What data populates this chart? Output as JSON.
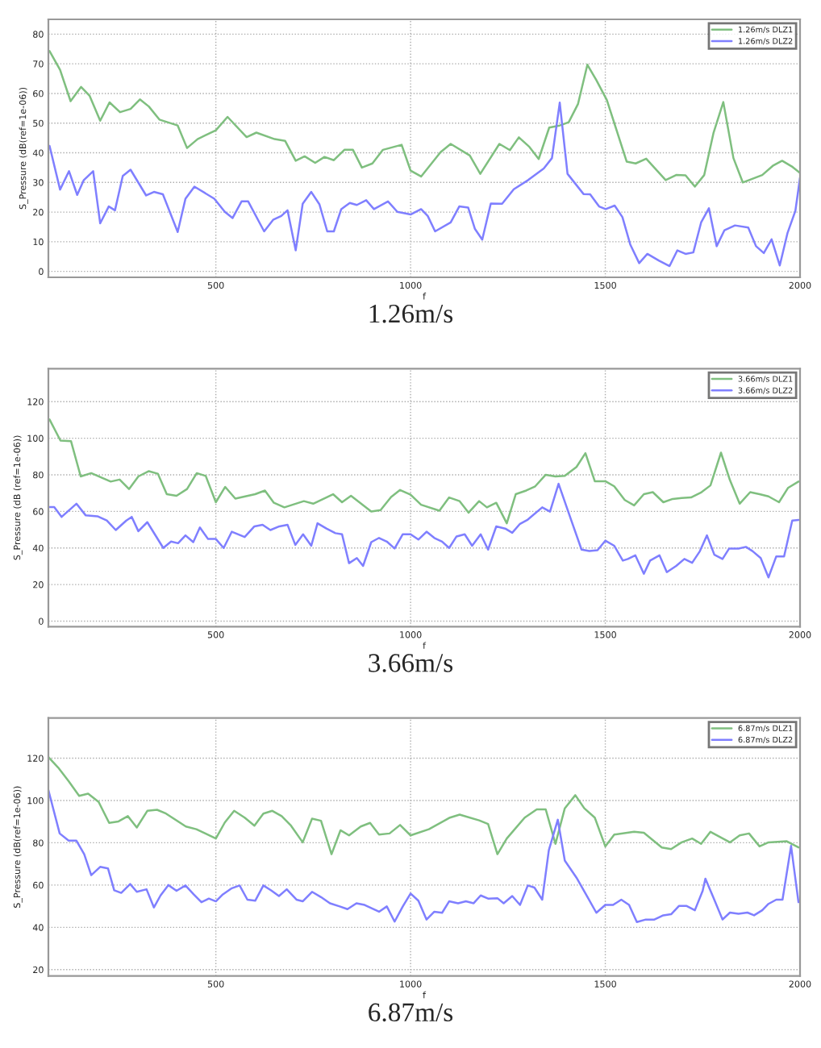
{
  "chart_data": [
    {
      "type": "line",
      "xlabel": "f",
      "ylabel": "S_Pressure (dB(ref=1e-06))",
      "annotations": [
        "1.26m/s"
      ],
      "xlim": [
        70,
        2000
      ],
      "xticks": [
        500,
        1000,
        1500,
        2000
      ],
      "ylim": [
        -2,
        85
      ],
      "yticks": [
        0,
        10,
        20,
        30,
        40,
        50,
        60,
        70,
        80
      ],
      "grid": true,
      "legend": "top right",
      "line_style": "solid",
      "series": [
        {
          "name": "1.26m/s DLZ1",
          "color": "#7fbf7f",
          "x": [
            73,
            100,
            127,
            154,
            176,
            203,
            227,
            254,
            281,
            305,
            328,
            355,
            402,
            426,
            453,
            500,
            530,
            579,
            604,
            651,
            678,
            705,
            728,
            755,
            779,
            803,
            830,
            852,
            875,
            902,
            929,
            977,
            1000,
            1027,
            1077,
            1103,
            1152,
            1179,
            1228,
            1255,
            1278,
            1305,
            1329,
            1356,
            1383,
            1406,
            1430,
            1454,
            1477,
            1504,
            1555,
            1578,
            1605,
            1655,
            1682,
            1706,
            1730,
            1754,
            1778,
            1803,
            1829,
            1853,
            1903,
            1930,
            1954,
            1981,
            2000
          ],
          "values": [
            74.3,
            68,
            57.4,
            62.2,
            59.2,
            50.8,
            57,
            53.7,
            54.8,
            58,
            55.6,
            51.2,
            49.2,
            41.6,
            44.6,
            47.6,
            52.1,
            45.3,
            46.8,
            44.6,
            44,
            37.3,
            38.8,
            36.6,
            38.6,
            37.5,
            41,
            41,
            35,
            36.4,
            41,
            42.7,
            34,
            32,
            40.2,
            43,
            39.1,
            32.9,
            43,
            40.9,
            45.2,
            42,
            37.9,
            48.5,
            49.2,
            50.3,
            56.5,
            69.7,
            64.5,
            57.8,
            37,
            36.4,
            38,
            30.8,
            32.5,
            32.4,
            28.6,
            32.5,
            46.8,
            57.1,
            38.2,
            30,
            32.5,
            35.6,
            37.3,
            35.2,
            33.2
          ]
        },
        {
          "name": "1.26m/s DLZ2",
          "color": "#7f7fff",
          "x": [
            73,
            100,
            123,
            144,
            161,
            185,
            203,
            225,
            241,
            261,
            281,
            321,
            341,
            364,
            402,
            422,
            445,
            496,
            523,
            543,
            566,
            583,
            624,
            647,
            668,
            684,
            705,
            723,
            745,
            766,
            786,
            803,
            822,
            844,
            862,
            886,
            906,
            942,
            966,
            1000,
            1027,
            1044,
            1063,
            1103,
            1125,
            1148,
            1165,
            1184,
            1206,
            1235,
            1265,
            1302,
            1342,
            1363,
            1383,
            1403,
            1444,
            1461,
            1484,
            1501,
            1524,
            1544,
            1564,
            1587,
            1608,
            1638,
            1665,
            1685,
            1706,
            1726,
            1746,
            1766,
            1786,
            1806,
            1833,
            1867,
            1887,
            1907,
            1927,
            1948,
            1968,
            1988,
            2000
          ],
          "values": [
            42.3,
            27.6,
            33.8,
            25.8,
            30.8,
            33.8,
            16.2,
            21.9,
            20.6,
            32.2,
            34.3,
            25.6,
            26.8,
            26,
            13.3,
            24.5,
            28.6,
            24.5,
            20.1,
            18,
            23.6,
            23.6,
            13.5,
            17.4,
            18.7,
            20.6,
            7.1,
            22.8,
            26.8,
            22.6,
            13.5,
            13.5,
            21,
            23.1,
            22.4,
            24,
            21,
            23.6,
            20.1,
            19.2,
            21,
            18.7,
            13.5,
            16.5,
            21.9,
            21.5,
            14.4,
            10.7,
            22.9,
            22.8,
            27.7,
            30.8,
            34.7,
            38.2,
            56.9,
            32.9,
            26.1,
            26,
            21.9,
            21,
            22.2,
            18.3,
            9.1,
            2.8,
            5.9,
            3.6,
            1.8,
            7.1,
            5.9,
            6.4,
            16.5,
            21.3,
            8.5,
            13.9,
            15.5,
            14.8,
            8.5,
            6.2,
            10.8,
            2,
            13,
            20.4,
            31.6
          ]
        }
      ]
    },
    {
      "type": "line",
      "xlabel": "f",
      "ylabel": "S_Pressure (dB (ref=1e-06))",
      "annotations": [
        "3.66m/s"
      ],
      "xlim": [
        70,
        2000
      ],
      "xticks": [
        500,
        1000,
        1500,
        2000
      ],
      "ylim": [
        -3,
        138
      ],
      "yticks": [
        0,
        20,
        40,
        60,
        80,
        100,
        120
      ],
      "grid": true,
      "legend": "top right",
      "line_style": "solid",
      "series": [
        {
          "name": "3.66m/s DLZ1",
          "color": "#7fbf7f",
          "x": [
            73,
            101,
            128,
            153,
            180,
            230,
            253,
            277,
            301,
            328,
            351,
            374,
            399,
            426,
            451,
            474,
            500,
            524,
            550,
            601,
            626,
            649,
            676,
            726,
            750,
            801,
            824,
            847,
            899,
            923,
            950,
            973,
            1000,
            1027,
            1074,
            1099,
            1126,
            1149,
            1176,
            1196,
            1220,
            1247,
            1270,
            1297,
            1320,
            1347,
            1372,
            1396,
            1426,
            1449,
            1473,
            1500,
            1523,
            1550,
            1574,
            1599,
            1622,
            1649,
            1673,
            1696,
            1720,
            1747,
            1770,
            1797,
            1820,
            1845,
            1872,
            1896,
            1919,
            1946,
            1969,
            1996
          ],
          "values": [
            110.2,
            98.7,
            98.4,
            79.1,
            80.9,
            76.3,
            77.4,
            72.2,
            79.1,
            82,
            80.6,
            69.4,
            68.5,
            72.2,
            80.9,
            79.4,
            65,
            73.4,
            67,
            69.4,
            71.4,
            64.7,
            62.2,
            65.6,
            64.2,
            69.4,
            65,
            68.5,
            59.9,
            60.7,
            67.9,
            71.7,
            69.1,
            63.6,
            60.4,
            67.6,
            65.6,
            59.3,
            65.6,
            62.2,
            64.7,
            53.5,
            69.4,
            71.4,
            73.7,
            80,
            79.1,
            79.4,
            84.3,
            91.8,
            76.5,
            76.5,
            73.7,
            66.2,
            63.3,
            69.4,
            70.5,
            65,
            66.8,
            67.3,
            67.6,
            70.5,
            74.2,
            92.1,
            77.1,
            64.2,
            70.5,
            69.4,
            68.2,
            65,
            72.8,
            76.3
          ]
        },
        {
          "name": "3.66m/s DLZ2",
          "color": "#7f7fff",
          "x": [
            73,
            85,
            104,
            142,
            166,
            196,
            220,
            243,
            270,
            284,
            301,
            324,
            365,
            385,
            403,
            422,
            442,
            459,
            480,
            500,
            520,
            541,
            574,
            599,
            620,
            640,
            663,
            684,
            704,
            724,
            745,
            761,
            784,
            807,
            824,
            842,
            862,
            878,
            899,
            919,
            939,
            959,
            980,
            1000,
            1020,
            1041,
            1061,
            1081,
            1099,
            1118,
            1139,
            1158,
            1180,
            1199,
            1220,
            1243,
            1261,
            1281,
            1301,
            1338,
            1358,
            1380,
            1412,
            1439,
            1459,
            1480,
            1500,
            1523,
            1545,
            1558,
            1577,
            1599,
            1615,
            1639,
            1658,
            1682,
            1703,
            1723,
            1743,
            1761,
            1780,
            1801,
            1818,
            1842,
            1861,
            1878,
            1899,
            1919,
            1939,
            1959,
            1980,
            1996
          ],
          "values": [
            62.4,
            62.4,
            57,
            64.2,
            57.8,
            57.3,
            55,
            49.8,
            55,
            57,
            49.2,
            54.1,
            40,
            43.5,
            42.6,
            46.9,
            43.2,
            51.2,
            44.9,
            44.9,
            40,
            48.9,
            46,
            51.8,
            52.7,
            49.8,
            51.8,
            52.7,
            41.7,
            47.5,
            41.2,
            53.5,
            50.6,
            48.1,
            47.5,
            31.7,
            34.5,
            30.2,
            43.2,
            45.5,
            43.5,
            39.7,
            47.5,
            47.5,
            44.6,
            48.9,
            45.5,
            43.5,
            40,
            46.3,
            47.5,
            41.2,
            47.5,
            39.1,
            51.8,
            50.6,
            48.3,
            53.2,
            55.5,
            62.2,
            59.9,
            75.1,
            55.5,
            39.1,
            38.3,
            38.8,
            44,
            41.2,
            33.1,
            34,
            36,
            25.9,
            33.1,
            36,
            26.8,
            30.2,
            34,
            31.9,
            38.3,
            46.9,
            36.3,
            34,
            39.7,
            39.7,
            40.6,
            38.3,
            34.5,
            23.9,
            35.4,
            35.4,
            55,
            55.3
          ]
        }
      ]
    },
    {
      "type": "line",
      "xlabel": "f",
      "ylabel": "S_Pressure (dB(ref=1e-06))",
      "annotations": [
        "6.87m/s"
      ],
      "xlim": [
        70,
        2000
      ],
      "xticks": [
        500,
        1000,
        1500,
        2000
      ],
      "ylim": [
        17,
        139
      ],
      "yticks": [
        20,
        40,
        60,
        80,
        100,
        120
      ],
      "grid": true,
      "legend": "top right",
      "line_style": "solid",
      "series": [
        {
          "name": "6.87m/s DLZ1",
          "color": "#7fbf7f",
          "x": [
            70,
            95,
            122,
            149,
            172,
            199,
            226,
            250,
            274,
            297,
            324,
            349,
            372,
            423,
            450,
            473,
            500,
            523,
            547,
            574,
            599,
            622,
            645,
            669,
            693,
            723,
            747,
            770,
            797,
            820,
            842,
            872,
            896,
            919,
            946,
            973,
            1000,
            1047,
            1101,
            1126,
            1176,
            1199,
            1223,
            1247,
            1293,
            1324,
            1347,
            1372,
            1396,
            1423,
            1446,
            1473,
            1500,
            1523,
            1574,
            1599,
            1645,
            1669,
            1696,
            1723,
            1746,
            1770,
            1820,
            1845,
            1869,
            1896,
            1919,
            1966,
            1996
          ],
          "values": [
            120.5,
            115.6,
            109.1,
            102.2,
            103.2,
            99.3,
            89.4,
            90.1,
            92.6,
            87.2,
            95.1,
            95.6,
            93.8,
            87.7,
            86.4,
            84.4,
            82,
            89.6,
            95.1,
            91.9,
            88.1,
            93.8,
            95.1,
            92.6,
            88.1,
            80.2,
            91.4,
            90.4,
            74.6,
            85.9,
            83.5,
            87.7,
            89.4,
            83.9,
            84.4,
            88.4,
            83.5,
            86.4,
            91.9,
            93.3,
            90.6,
            88.9,
            74.6,
            82,
            91.9,
            95.8,
            95.8,
            79.5,
            96.3,
            102.5,
            96.3,
            91.9,
            78.3,
            83.9,
            85.2,
            84.7,
            77.8,
            77,
            80.2,
            82,
            79.5,
            85.2,
            80.2,
            83.5,
            84.4,
            78.3,
            80.2,
            80.7,
            77.8
          ]
        },
        {
          "name": "6.87m/s DLZ2",
          "color": "#7f7fff",
          "x": [
            70,
            99,
            122,
            142,
            162,
            180,
            203,
            223,
            239,
            257,
            280,
            297,
            322,
            341,
            358,
            378,
            399,
            422,
            443,
            463,
            482,
            500,
            518,
            541,
            561,
            581,
            601,
            622,
            642,
            662,
            682,
            707,
            723,
            747,
            770,
            793,
            818,
            838,
            861,
            882,
            919,
            939,
            959,
            980,
            1000,
            1020,
            1041,
            1061,
            1081,
            1099,
            1122,
            1142,
            1162,
            1180,
            1199,
            1223,
            1239,
            1261,
            1281,
            1301,
            1318,
            1338,
            1355,
            1378,
            1396,
            1426,
            1453,
            1477,
            1500,
            1520,
            1541,
            1561,
            1581,
            1604,
            1626,
            1649,
            1669,
            1689,
            1709,
            1730,
            1750,
            1757,
            1777,
            1801,
            1820,
            1842,
            1865,
            1882,
            1903,
            1919,
            1939,
            1955,
            1977,
            1996
          ],
          "values": [
            104.9,
            84.4,
            81,
            81,
            74.6,
            64.7,
            68.6,
            67.9,
            57.5,
            56.3,
            60.5,
            56.8,
            58,
            49.4,
            55.1,
            60,
            57.3,
            59.8,
            55.6,
            51.9,
            53.6,
            52.3,
            55.6,
            58.5,
            59.8,
            53.1,
            52.6,
            59.8,
            57.5,
            54.8,
            58,
            53.1,
            52.3,
            56.8,
            54.3,
            51.4,
            49.9,
            48.6,
            51.4,
            50.6,
            47.4,
            49.9,
            42.7,
            49.9,
            56,
            52.6,
            43.7,
            47.4,
            46.9,
            52.3,
            51.4,
            52.3,
            51.4,
            55.1,
            53.6,
            53.8,
            51.4,
            54.8,
            50.6,
            59.8,
            58.8,
            53.1,
            76.5,
            90.9,
            71.6,
            63.5,
            54.8,
            46.9,
            50.6,
            50.6,
            53.1,
            50.6,
            42.5,
            43.7,
            43.7,
            45.7,
            46.2,
            50.1,
            50.1,
            48.1,
            57.3,
            63,
            54.3,
            43.7,
            47,
            46.4,
            47,
            45.7,
            48.1,
            51.1,
            53.1,
            53.1,
            78.5,
            51.9
          ]
        }
      ]
    }
  ]
}
